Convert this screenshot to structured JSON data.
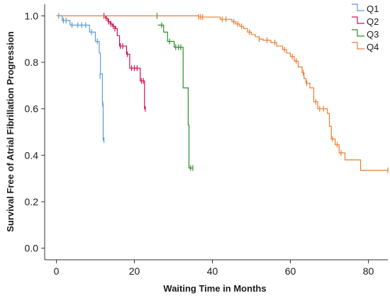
{
  "chart_data": {
    "type": "line",
    "subtype": "kaplan-meier step",
    "title": "",
    "xlabel": "Waiting Time in Months",
    "ylabel": "Survival Free of Atrial Fibrillation Progression",
    "xlim": [
      -3,
      85
    ],
    "ylim": [
      -0.05,
      1.05
    ],
    "x_ticks": [
      "0",
      "20",
      "40",
      "60",
      "80"
    ],
    "x_tick_values": [
      0,
      20,
      40,
      60,
      80
    ],
    "y_ticks": [
      "0.0",
      "0.2",
      "0.4",
      "0.6",
      "0.8",
      "1.0"
    ],
    "y_tick_values": [
      0,
      0.2,
      0.4,
      0.6,
      0.8,
      1.0
    ],
    "grid": false,
    "legend_position": "top-right",
    "series": [
      {
        "name": "Q1",
        "color": "#5b9bd5",
        "steps": [
          [
            0,
            1.0
          ],
          [
            1.5,
            0.98
          ],
          [
            3.5,
            0.96
          ],
          [
            8.5,
            0.93
          ],
          [
            10,
            0.89
          ],
          [
            11,
            0.84
          ],
          [
            11.3,
            0.75
          ],
          [
            11.8,
            0.62
          ],
          [
            12,
            0.465
          ]
        ],
        "censored": [
          [
            0.6,
            1.0
          ],
          [
            1.8,
            0.98
          ],
          [
            2.5,
            0.98
          ],
          [
            4,
            0.96
          ],
          [
            5.5,
            0.96
          ],
          [
            6.5,
            0.96
          ],
          [
            7.5,
            0.96
          ],
          [
            9,
            0.93
          ],
          [
            10.5,
            0.89
          ],
          [
            11.2,
            0.74
          ],
          [
            11.9,
            0.62
          ],
          [
            12.2,
            0.465
          ]
        ]
      },
      {
        "name": "Q2",
        "color": "#d0104c",
        "steps": [
          [
            12,
            1.0
          ],
          [
            12.6,
            0.99
          ],
          [
            13.2,
            0.975
          ],
          [
            13.8,
            0.965
          ],
          [
            14.4,
            0.955
          ],
          [
            15.2,
            0.945
          ],
          [
            15.6,
            0.915
          ],
          [
            16.2,
            0.87
          ],
          [
            18,
            0.835
          ],
          [
            18.8,
            0.775
          ],
          [
            21.5,
            0.72
          ],
          [
            22.6,
            0.6
          ]
        ],
        "censored": [
          [
            12.2,
            1.0
          ],
          [
            12.8,
            0.99
          ],
          [
            13.4,
            0.975
          ],
          [
            14,
            0.965
          ],
          [
            14.6,
            0.955
          ],
          [
            15,
            0.945
          ],
          [
            16.4,
            0.87
          ],
          [
            17,
            0.87
          ],
          [
            18.2,
            0.835
          ],
          [
            19.3,
            0.775
          ],
          [
            20,
            0.775
          ],
          [
            20.7,
            0.775
          ],
          [
            21.8,
            0.72
          ],
          [
            22.3,
            0.72
          ],
          [
            22.8,
            0.6
          ]
        ]
      },
      {
        "name": "Q3",
        "color": "#2e8b2e",
        "steps": [
          [
            26,
            0.96
          ],
          [
            27.5,
            0.93
          ],
          [
            28.5,
            0.89
          ],
          [
            30.2,
            0.865
          ],
          [
            32.5,
            0.69
          ],
          [
            33.8,
            0.53
          ],
          [
            34,
            0.345
          ]
        ],
        "censored": [
          [
            25.8,
            1.0
          ],
          [
            27,
            0.96
          ],
          [
            29,
            0.89
          ],
          [
            30.6,
            0.865
          ],
          [
            31.3,
            0.865
          ],
          [
            31.9,
            0.865
          ],
          [
            34.4,
            0.345
          ],
          [
            35,
            0.345
          ]
        ]
      },
      {
        "name": "Q4",
        "color": "#ed7d31",
        "steps": [
          [
            0,
            1.0
          ],
          [
            36.5,
            0.995
          ],
          [
            42,
            0.985
          ],
          [
            45,
            0.975
          ],
          [
            46,
            0.965
          ],
          [
            47,
            0.955
          ],
          [
            48,
            0.945
          ],
          [
            49,
            0.93
          ],
          [
            50,
            0.92
          ],
          [
            51,
            0.91
          ],
          [
            52,
            0.9
          ],
          [
            53,
            0.895
          ],
          [
            55,
            0.885
          ],
          [
            56.5,
            0.87
          ],
          [
            58,
            0.855
          ],
          [
            59,
            0.84
          ],
          [
            60,
            0.825
          ],
          [
            61,
            0.805
          ],
          [
            62,
            0.78
          ],
          [
            63,
            0.755
          ],
          [
            63.5,
            0.73
          ],
          [
            64,
            0.71
          ],
          [
            65,
            0.69
          ],
          [
            66,
            0.63
          ],
          [
            67,
            0.6
          ],
          [
            69.5,
            0.58
          ],
          [
            70,
            0.525
          ],
          [
            70.5,
            0.47
          ],
          [
            71.5,
            0.445
          ],
          [
            72.5,
            0.41
          ],
          [
            74,
            0.38
          ],
          [
            78,
            0.335
          ]
        ],
        "censored": [
          [
            36.5,
            0.995
          ],
          [
            37,
            0.995
          ],
          [
            37.5,
            0.995
          ],
          [
            42.5,
            0.985
          ],
          [
            43.5,
            0.985
          ],
          [
            45.5,
            0.975
          ],
          [
            46.5,
            0.965
          ],
          [
            47.5,
            0.955
          ],
          [
            49.5,
            0.93
          ],
          [
            52,
            0.9
          ],
          [
            54,
            0.895
          ],
          [
            56,
            0.885
          ],
          [
            58.5,
            0.855
          ],
          [
            60.5,
            0.825
          ],
          [
            61.5,
            0.805
          ],
          [
            63.3,
            0.755
          ],
          [
            64.2,
            0.71
          ],
          [
            66.5,
            0.63
          ],
          [
            67.5,
            0.6
          ],
          [
            68.5,
            0.6
          ],
          [
            70.8,
            0.47
          ],
          [
            72,
            0.445
          ],
          [
            73,
            0.41
          ],
          [
            85,
            0.335
          ]
        ]
      }
    ]
  }
}
